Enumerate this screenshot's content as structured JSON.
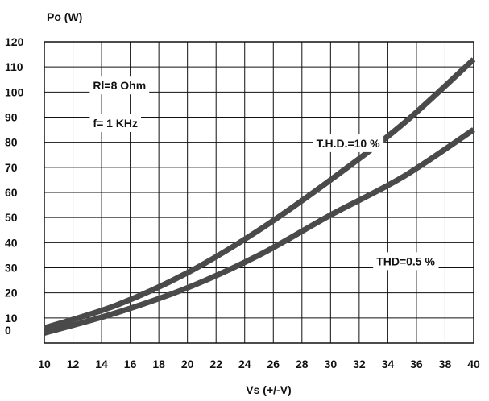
{
  "chart_data": {
    "type": "line",
    "title": "",
    "xlabel": "Vs (+/-V)",
    "ylabel": "Po (W)",
    "xlim": [
      10,
      40
    ],
    "ylim": [
      0,
      120
    ],
    "x_ticks": [
      10,
      12,
      14,
      16,
      18,
      20,
      22,
      24,
      26,
      28,
      30,
      32,
      34,
      36,
      38,
      40
    ],
    "y_ticks": [
      0,
      10,
      20,
      30,
      40,
      50,
      60,
      70,
      80,
      90,
      100,
      110,
      120
    ],
    "grid": true,
    "legend": "none",
    "series": [
      {
        "name": "T.H.D.=10 %",
        "color": "#4a4a4a",
        "x": [
          10,
          15,
          20,
          25,
          30,
          35,
          40
        ],
        "y": [
          6,
          15,
          28,
          45,
          65,
          87,
          113
        ]
      },
      {
        "name": "THD=0.5 %",
        "color": "#4a4a4a",
        "x": [
          10,
          15,
          20,
          25,
          30,
          35,
          40
        ],
        "y": [
          4,
          12,
          22,
          35,
          51,
          66,
          85
        ]
      }
    ],
    "annotations": [
      {
        "text": "Rl=8 Ohm",
        "x": 13.4,
        "y": 101
      },
      {
        "text": "f= 1 KHz",
        "x": 13.4,
        "y": 86
      },
      {
        "text": "T.H.D.=10 %",
        "x": 29.0,
        "y": 78
      },
      {
        "text": "THD=0.5 %",
        "x": 33.2,
        "y": 31
      }
    ]
  }
}
